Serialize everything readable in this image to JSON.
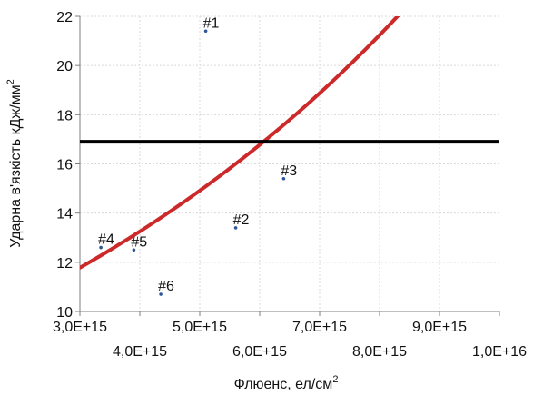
{
  "chart_data": {
    "type": "scatter",
    "title": "",
    "xlabel": "Флюенс, ел/см",
    "xlabel_sup": "2",
    "ylabel": "Ударна в'язкість кДж/мм",
    "ylabel_sup": "2",
    "xlim": [
      3000000000000000.0,
      1e+16
    ],
    "ylim": [
      10,
      22
    ],
    "x_ticks": [
      {
        "value": 3000000000000000.0,
        "label": "3,0E+15",
        "row": "upper"
      },
      {
        "value": 4000000000000000.0,
        "label": "4,0E+15",
        "row": "lower"
      },
      {
        "value": 5000000000000000.0,
        "label": "5,0E+15",
        "row": "upper"
      },
      {
        "value": 6000000000000000.0,
        "label": "6,0E+15",
        "row": "lower"
      },
      {
        "value": 7000000000000000.0,
        "label": "7,0E+15",
        "row": "upper"
      },
      {
        "value": 8000000000000000.0,
        "label": "8,0E+15",
        "row": "lower"
      },
      {
        "value": 9000000000000000.0,
        "label": "9,0E+15",
        "row": "upper"
      },
      {
        "value": 1e+16,
        "label": "1,0E+16",
        "row": "lower"
      }
    ],
    "y_ticks": [
      {
        "value": 10,
        "label": "10"
      },
      {
        "value": 12,
        "label": "12"
      },
      {
        "value": 14,
        "label": "14"
      },
      {
        "value": 16,
        "label": "16"
      },
      {
        "value": 18,
        "label": "18"
      },
      {
        "value": 20,
        "label": "20"
      },
      {
        "value": 22,
        "label": "22"
      }
    ],
    "grid": true,
    "legend": "none",
    "points": [
      {
        "label": "#1",
        "x": 5100000000000000.0,
        "y": 21.4
      },
      {
        "label": "#2",
        "x": 5600000000000000.0,
        "y": 13.4
      },
      {
        "label": "#3",
        "x": 6400000000000000.0,
        "y": 15.4
      },
      {
        "label": "#4",
        "x": 3350000000000000.0,
        "y": 12.6
      },
      {
        "label": "#5",
        "x": 3900000000000000.0,
        "y": 12.5
      },
      {
        "label": "#6",
        "x": 4350000000000000.0,
        "y": 10.7
      }
    ],
    "threshold": {
      "y": 16.9
    },
    "trend": {
      "type": "exponential",
      "points": [
        {
          "x": 3000000000000000.0,
          "y": 11.78
        },
        {
          "x": 4000000000000000.0,
          "y": 12.95
        },
        {
          "x": 5000000000000000.0,
          "y": 14.5
        },
        {
          "x": 6000000000000000.0,
          "y": 16.25
        },
        {
          "x": 7000000000000000.0,
          "y": 18.5
        },
        {
          "x": 8000000000000000.0,
          "y": 21.0
        },
        {
          "x": 8300000000000000.0,
          "y": 22.0
        }
      ]
    },
    "colors": {
      "points": "#2f5597",
      "trend": "#cc2a2a",
      "threshold": "#000000",
      "grid": "#d9d9d9",
      "axis": "#7f7f7f"
    }
  }
}
